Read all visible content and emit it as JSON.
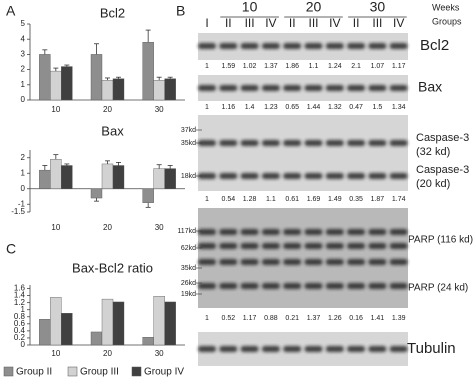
{
  "chart_data": [
    {
      "type": "bar",
      "panel": "A",
      "title": "Bcl2",
      "categories": [
        "10",
        "20",
        "30"
      ],
      "series": [
        {
          "name": "Group II",
          "color": "#8e8e8e",
          "values": [
            3.0,
            3.0,
            3.8
          ],
          "errors": [
            0.3,
            0.7,
            0.8
          ]
        },
        {
          "name": "Group III",
          "color": "#d2d2d2",
          "values": [
            1.9,
            1.3,
            1.3
          ],
          "errors": [
            0.2,
            0.15,
            0.2
          ]
        },
        {
          "name": "Group IV",
          "color": "#404040",
          "values": [
            2.2,
            1.4,
            1.4
          ],
          "errors": [
            0.1,
            0.1,
            0.1
          ]
        }
      ],
      "ylim": [
        0,
        5
      ],
      "yticks": [
        0,
        1,
        2,
        3,
        4,
        5
      ],
      "legend": "bottom"
    },
    {
      "type": "bar",
      "title": "Bax",
      "categories": [
        "10",
        "20",
        "30"
      ],
      "series": [
        {
          "color": "#8e8e8e",
          "values": [
            1.2,
            -0.6,
            -0.9
          ],
          "errors": [
            0.3,
            0.2,
            0.3
          ]
        },
        {
          "color": "#d2d2d2",
          "values": [
            1.9,
            1.6,
            1.3
          ],
          "errors": [
            0.3,
            0.2,
            0.25
          ]
        },
        {
          "color": "#404040",
          "values": [
            1.5,
            1.5,
            1.3
          ],
          "errors": [
            0.1,
            0.2,
            0.2
          ]
        }
      ],
      "ylim": [
        -1.5,
        2.5
      ],
      "yticks": [
        -1.5,
        -1,
        0,
        1,
        2
      ]
    },
    {
      "type": "bar",
      "panel": "C",
      "title": "Bax-Bcl2 ratio",
      "categories": [
        "10",
        "20",
        "30"
      ],
      "series": [
        {
          "color": "#8e8e8e",
          "values": [
            0.73,
            0.37,
            0.22
          ]
        },
        {
          "color": "#d2d2d2",
          "values": [
            1.35,
            1.3,
            1.38
          ]
        },
        {
          "color": "#404040",
          "values": [
            0.9,
            1.22,
            1.22
          ]
        }
      ],
      "ylim": [
        0,
        1.7
      ],
      "yticks": [
        0,
        0.2,
        0.4,
        0.6,
        0.8,
        1,
        1.2,
        1.4,
        1.6
      ]
    }
  ],
  "blots": {
    "panel": "B",
    "weeks_label": "Weeks",
    "groups_label": "Groups",
    "weeks": [
      "10",
      "20",
      "30"
    ],
    "groups": [
      "I",
      "II",
      "III",
      "IV",
      "II",
      "III",
      "IV",
      "II",
      "III",
      "IV"
    ],
    "rows": [
      {
        "labels": [
          "Bcl2"
        ],
        "values": [
          1,
          1.59,
          1.02,
          1.37,
          1.86,
          1.1,
          1.24,
          2.1,
          1.07,
          1.17
        ]
      },
      {
        "labels": [
          "Bax"
        ],
        "values": [
          1,
          1.16,
          1.4,
          1.23,
          0.65,
          1.44,
          1.32,
          0.47,
          1.5,
          1.34
        ]
      },
      {
        "labels": [
          "Caspase-3",
          "(32 kd)",
          "Caspase-3",
          "(20 kd)"
        ],
        "markers": [
          "37kd",
          "35kd",
          "18kd"
        ],
        "values": [
          1,
          0.54,
          1.28,
          1.1,
          0.61,
          1.69,
          1.49,
          0.35,
          1.87,
          1.74
        ]
      },
      {
        "labels": [
          "PARP (116 kd)",
          "PARP (24 kd)"
        ],
        "markers": [
          "117kd",
          "62kd",
          "35kd",
          "26kd",
          "19kd"
        ],
        "values": [
          1,
          0.52,
          1.17,
          0.88,
          0.21,
          1.37,
          1.26,
          0.16,
          1.41,
          1.39
        ]
      },
      {
        "labels": [
          "Tubulin"
        ]
      }
    ]
  }
}
